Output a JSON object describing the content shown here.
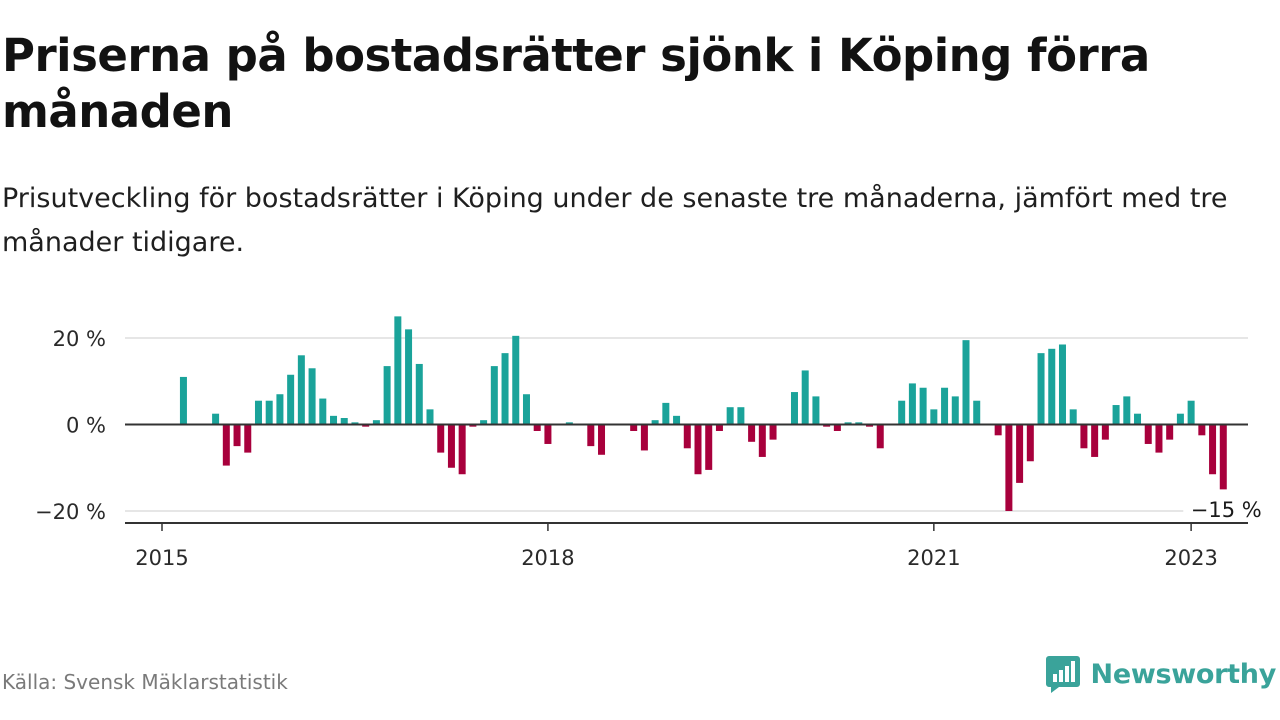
{
  "title": "Priserna på bostadsrätter sjönk i Köping förra månaden",
  "subtitle": "Prisutveckling för bostadsrätter i Köping under de senaste tre månaderna, jämfört med tre månader tidigare.",
  "source": "Källa: Svensk Mäklarstatistik",
  "brand": {
    "name": "Newsworthy",
    "icon": "newsworthy-logo-icon"
  },
  "colors": {
    "positive": "#1aa39a",
    "negative": "#a8003c",
    "axis": "#333333",
    "grid": "#dddddd",
    "brand": "#3aa39a"
  },
  "chart_data": {
    "type": "bar",
    "ylabel": "",
    "xlabel": "",
    "ylim": [
      -23,
      25
    ],
    "yticks": [
      {
        "value": 20,
        "label": "20 %"
      },
      {
        "value": 0,
        "label": "0 %"
      },
      {
        "value": -20,
        "label": "−20 %"
      }
    ],
    "xticks": [
      {
        "index": 0,
        "label": "2015"
      },
      {
        "index": 36,
        "label": "2018"
      },
      {
        "index": 72,
        "label": "2021"
      },
      {
        "index": 96,
        "label": "2023"
      }
    ],
    "start": "2015-01",
    "values": [
      null,
      null,
      11,
      null,
      null,
      2.5,
      -9.5,
      -5,
      -6.5,
      5.5,
      5.5,
      7,
      11.5,
      16,
      13,
      6,
      2,
      1.5,
      0.5,
      -0.5,
      1,
      13.5,
      25,
      22,
      14,
      3.5,
      -6.5,
      -10,
      -11.5,
      -0.5,
      1,
      13.5,
      16.5,
      20.5,
      7,
      -1.5,
      -4.5,
      null,
      0.5,
      null,
      -5,
      -7,
      null,
      null,
      -1.5,
      -6,
      1,
      5,
      2,
      -5.5,
      -11.5,
      -10.5,
      -1.5,
      4,
      4,
      -4,
      -7.5,
      -3.5,
      null,
      7.5,
      12.5,
      6.5,
      -0.5,
      -1.5,
      0.5,
      0.5,
      -0.5,
      -5.5,
      null,
      5.5,
      9.5,
      8.5,
      3.5,
      8.5,
      6.5,
      19.5,
      5.5,
      null,
      -2.5,
      -20,
      -13.5,
      -8.5,
      16.5,
      17.5,
      18.5,
      3.5,
      -5.5,
      -7.5,
      -3.5,
      4.5,
      6.5,
      2.5,
      -4.5,
      -6.5,
      -3.5,
      2.5,
      5.5,
      -2.5,
      -11.5,
      -15
    ],
    "annotation": {
      "label": "−15 %",
      "value": -15
    }
  }
}
